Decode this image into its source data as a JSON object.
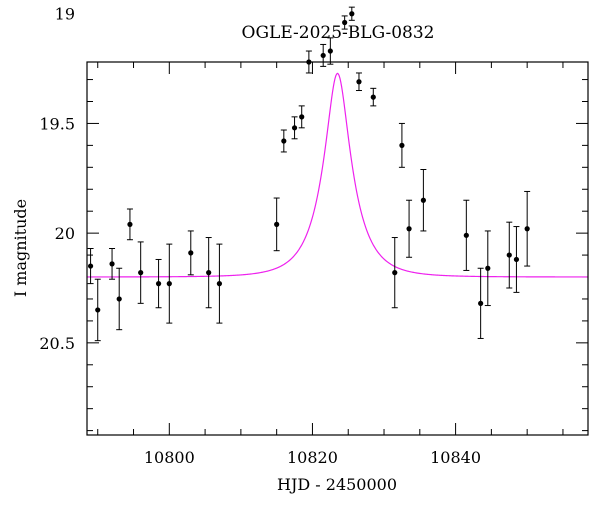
{
  "chart_data": {
    "type": "scatter",
    "title": "OGLE-2025-BLG-0832",
    "xlabel": "HJD - 2450000",
    "ylabel": "I magnitude",
    "xlim": [
      10788.5,
      10858.5
    ],
    "ylim": [
      20.92,
      19.22
    ],
    "y_inverted": true,
    "grid": false,
    "x_ticks": [
      10800,
      10820,
      10840
    ],
    "y_ticks": [
      19,
      19.5,
      20,
      20.5
    ],
    "x_minor_step": 5,
    "y_minor_step": 0.1,
    "colors": {
      "model": "#ee22ee",
      "points": "#000000"
    },
    "model": {
      "type": "paczynski",
      "t0": 10823.5,
      "tE": 4.2,
      "u0": 0.35,
      "baseline": 20.2,
      "fs": 0.68
    },
    "points": [
      {
        "x": 10789.0,
        "y": 20.15,
        "err": 0.08
      },
      {
        "x": 10790.0,
        "y": 20.35,
        "err": 0.14
      },
      {
        "x": 10792.0,
        "y": 20.14,
        "err": 0.07
      },
      {
        "x": 10793.0,
        "y": 20.3,
        "err": 0.14
      },
      {
        "x": 10794.5,
        "y": 19.96,
        "err": 0.07
      },
      {
        "x": 10796.0,
        "y": 20.18,
        "err": 0.14
      },
      {
        "x": 10798.5,
        "y": 20.23,
        "err": 0.11
      },
      {
        "x": 10800.0,
        "y": 20.23,
        "err": 0.18
      },
      {
        "x": 10803.0,
        "y": 20.09,
        "err": 0.1
      },
      {
        "x": 10805.5,
        "y": 20.18,
        "err": 0.16
      },
      {
        "x": 10807.0,
        "y": 20.23,
        "err": 0.18
      },
      {
        "x": 10815.0,
        "y": 19.96,
        "err": 0.12
      },
      {
        "x": 10816.0,
        "y": 19.58,
        "err": 0.05
      },
      {
        "x": 10817.5,
        "y": 19.52,
        "err": 0.05
      },
      {
        "x": 10818.5,
        "y": 19.47,
        "err": 0.05
      },
      {
        "x": 10819.5,
        "y": 19.22,
        "err": 0.05
      },
      {
        "x": 10821.5,
        "y": 19.19,
        "err": 0.05
      },
      {
        "x": 10822.5,
        "y": 19.17,
        "err": 0.06
      },
      {
        "x": 10824.5,
        "y": 19.04,
        "err": 0.03
      },
      {
        "x": 10825.5,
        "y": 19.0,
        "err": 0.03
      },
      {
        "x": 10826.5,
        "y": 19.31,
        "err": 0.04
      },
      {
        "x": 10828.5,
        "y": 19.38,
        "err": 0.04
      },
      {
        "x": 10831.5,
        "y": 20.18,
        "err": 0.16
      },
      {
        "x": 10832.5,
        "y": 19.6,
        "err": 0.1
      },
      {
        "x": 10833.5,
        "y": 19.98,
        "err": 0.13
      },
      {
        "x": 10835.5,
        "y": 19.85,
        "err": 0.14
      },
      {
        "x": 10841.5,
        "y": 20.01,
        "err": 0.16
      },
      {
        "x": 10843.5,
        "y": 20.32,
        "err": 0.16
      },
      {
        "x": 10844.5,
        "y": 20.16,
        "err": 0.17
      },
      {
        "x": 10847.5,
        "y": 20.1,
        "err": 0.15
      },
      {
        "x": 10848.5,
        "y": 20.12,
        "err": 0.15
      },
      {
        "x": 10850.0,
        "y": 19.98,
        "err": 0.17
      }
    ]
  }
}
